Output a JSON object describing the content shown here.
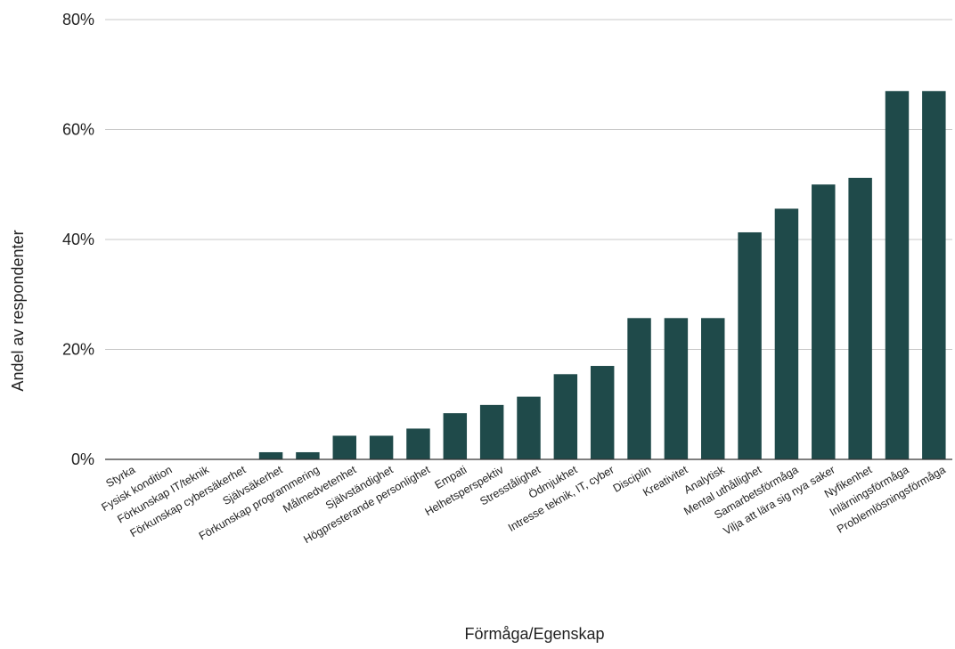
{
  "chart_data": {
    "type": "bar",
    "title": "",
    "xlabel": "Förmåga/Egenskap",
    "ylabel": "Andel av respondenter",
    "ylim": [
      0,
      80
    ],
    "yticks": [
      "0%",
      "20%",
      "40%",
      "60%",
      "80%"
    ],
    "ytick_values": [
      0,
      20,
      40,
      60,
      80
    ],
    "grid": true,
    "bar_color": "#1f4a4a",
    "categories": [
      "Styrka",
      "Fysisk kondition",
      "Förkunskap IT/teknik",
      "Förkunskap cybersäkerhet",
      "Självsäkerhet",
      "Förkunskap programmering",
      "Målmedvetenhet",
      "Självständighet",
      "Högpresterande personlighet",
      "Empati",
      "Helhetsperspektiv",
      "Stresstålighet",
      "Ödmjukhet",
      "Intresse teknik, IT, cyber",
      "Disciplin",
      "Kreativitet",
      "Analytisk",
      "Mental uthållighet",
      "Samarbetsförmåga",
      "Vilja att lära sig nya saker",
      "Nyfikenhet",
      "Inlärningsförmåga",
      "Problemlösningsförmåga"
    ],
    "values": [
      0,
      0,
      0,
      0,
      1.3,
      1.3,
      4.3,
      4.3,
      5.6,
      8.4,
      9.9,
      11.4,
      15.5,
      17.0,
      25.7,
      25.7,
      25.7,
      41.3,
      45.6,
      50.0,
      51.2,
      67.0,
      67.0
    ]
  }
}
